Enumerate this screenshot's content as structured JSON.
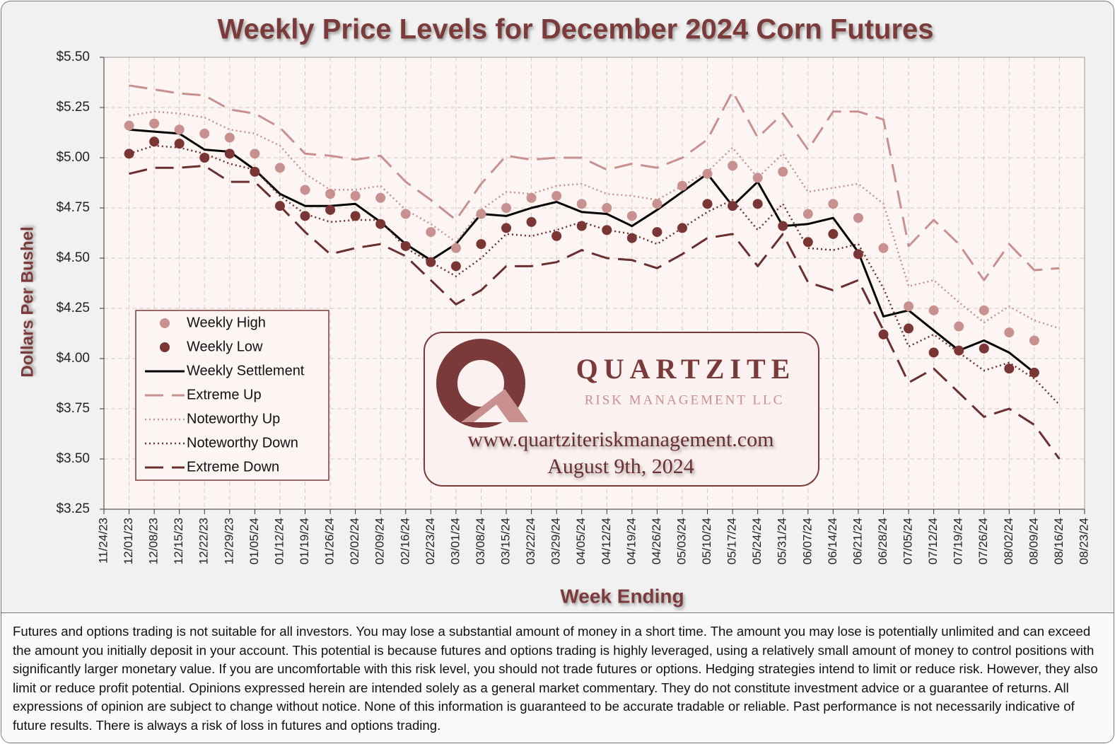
{
  "chart_data": {
    "type": "line",
    "title": "Weekly Price Levels for December 2024 Corn Futures",
    "y_label": "Dollars Per Bushel",
    "x_label": "Week Ending",
    "categories": [
      "11/24/23",
      "12/01/23",
      "12/08/23",
      "12/15/23",
      "12/22/23",
      "12/29/23",
      "01/05/24",
      "01/12/24",
      "01/19/24",
      "01/26/24",
      "02/02/24",
      "02/09/24",
      "02/16/24",
      "02/23/24",
      "03/01/24",
      "03/08/24",
      "03/15/24",
      "03/22/24",
      "03/29/24",
      "04/05/24",
      "04/12/24",
      "04/19/24",
      "04/26/24",
      "05/03/24",
      "05/10/24",
      "05/17/24",
      "05/24/24",
      "05/31/24",
      "06/07/24",
      "06/14/24",
      "06/21/24",
      "06/28/24",
      "07/05/24",
      "07/12/24",
      "07/19/24",
      "07/26/24",
      "08/02/24",
      "08/09/24",
      "08/16/24",
      "08/23/24"
    ],
    "ylim": [
      3.25,
      5.5
    ],
    "yticks": [
      {
        "value": 3.25,
        "label": "$3.25"
      },
      {
        "value": 3.5,
        "label": "$3.50"
      },
      {
        "value": 3.75,
        "label": "$3.75"
      },
      {
        "value": 4,
        "label": "$4.00"
      },
      {
        "value": 4.25,
        "label": "$4.25"
      },
      {
        "value": 4.5,
        "label": "$4.50"
      },
      {
        "value": 4.75,
        "label": "$4.75"
      },
      {
        "value": 5,
        "label": "$5.00"
      },
      {
        "value": 5.25,
        "label": "$5.25"
      },
      {
        "value": 5.5,
        "label": "$5.50"
      }
    ],
    "grid": true,
    "series": [
      {
        "name": "Weekly High",
        "color": "#c99090",
        "style": "marker",
        "values": [
          null,
          5.16,
          5.17,
          5.14,
          5.12,
          5.1,
          5.02,
          4.95,
          4.84,
          4.82,
          4.81,
          4.8,
          4.72,
          4.63,
          4.55,
          4.72,
          4.75,
          4.8,
          4.81,
          4.77,
          4.75,
          4.71,
          4.77,
          4.86,
          4.92,
          4.96,
          4.9,
          4.93,
          4.72,
          4.77,
          4.7,
          4.55,
          4.26,
          4.24,
          4.16,
          4.24,
          4.13,
          4.09,
          null,
          null
        ]
      },
      {
        "name": "Weekly Low",
        "color": "#7a3535",
        "style": "marker",
        "values": [
          null,
          5.02,
          5.08,
          5.07,
          5.0,
          5.02,
          4.93,
          4.76,
          4.71,
          4.74,
          4.71,
          4.67,
          4.56,
          4.48,
          4.46,
          4.57,
          4.65,
          4.68,
          4.61,
          4.66,
          4.64,
          4.6,
          4.63,
          4.65,
          4.77,
          4.76,
          4.77,
          4.66,
          4.58,
          4.62,
          4.52,
          4.12,
          4.15,
          4.03,
          4.04,
          4.05,
          3.95,
          3.93,
          null,
          null
        ]
      },
      {
        "name": "Weekly Settlement",
        "color": "#000000",
        "style": "solid",
        "values": [
          null,
          5.14,
          5.13,
          5.12,
          5.04,
          5.03,
          4.94,
          4.82,
          4.76,
          4.76,
          4.77,
          4.68,
          4.57,
          4.49,
          4.57,
          4.72,
          4.71,
          4.75,
          4.78,
          4.73,
          4.72,
          4.66,
          4.74,
          4.83,
          4.92,
          4.76,
          4.88,
          4.66,
          4.67,
          4.7,
          4.53,
          4.21,
          4.24,
          4.14,
          4.04,
          4.09,
          4.03,
          3.93,
          null,
          null
        ]
      },
      {
        "name": "Extreme Up",
        "color": "#c99090",
        "style": "dashed",
        "values": [
          null,
          5.36,
          5.34,
          5.32,
          5.31,
          5.24,
          5.22,
          5.15,
          5.02,
          5.01,
          4.99,
          5.01,
          4.88,
          4.79,
          4.69,
          4.87,
          5.01,
          4.99,
          5.0,
          5.0,
          4.94,
          4.97,
          4.95,
          5.0,
          5.09,
          5.33,
          5.1,
          5.22,
          5.04,
          5.23,
          5.23,
          5.19,
          4.56,
          4.69,
          4.57,
          4.39,
          4.57,
          4.44,
          4.45,
          null
        ]
      },
      {
        "name": "Noteworthy Up",
        "color": "#c99090",
        "style": "dotted",
        "values": [
          null,
          5.21,
          5.23,
          5.22,
          5.2,
          5.14,
          5.12,
          5.06,
          4.92,
          4.84,
          4.84,
          4.86,
          4.74,
          4.67,
          4.58,
          4.74,
          4.83,
          4.82,
          4.86,
          4.87,
          4.82,
          4.81,
          4.79,
          4.86,
          4.93,
          5.05,
          4.9,
          5.02,
          4.83,
          4.85,
          4.87,
          4.77,
          4.36,
          4.39,
          4.28,
          4.18,
          4.26,
          4.19,
          4.15,
          null
        ]
      },
      {
        "name": "Noteworthy Down",
        "color": "#6b2e2e",
        "style": "dotted",
        "values": [
          null,
          5.02,
          5.06,
          5.05,
          5.02,
          4.97,
          4.94,
          4.81,
          4.72,
          4.68,
          4.69,
          4.69,
          4.55,
          4.48,
          4.41,
          4.5,
          4.62,
          4.61,
          4.64,
          4.68,
          4.64,
          4.62,
          4.57,
          4.65,
          4.73,
          4.79,
          4.64,
          4.77,
          4.55,
          4.54,
          4.57,
          4.35,
          4.06,
          4.12,
          4.03,
          3.94,
          3.98,
          3.9,
          3.77,
          null
        ]
      },
      {
        "name": "Extreme Down",
        "color": "#6b2e2e",
        "style": "dashed",
        "values": [
          null,
          4.92,
          4.95,
          4.95,
          4.96,
          4.88,
          4.88,
          4.76,
          4.63,
          4.52,
          4.55,
          4.57,
          4.51,
          4.39,
          4.27,
          4.34,
          4.46,
          4.46,
          4.48,
          4.54,
          4.5,
          4.49,
          4.45,
          4.52,
          4.6,
          4.62,
          4.46,
          4.62,
          4.38,
          4.34,
          4.39,
          4.14,
          3.88,
          3.95,
          3.83,
          3.71,
          3.75,
          3.67,
          3.5,
          null
        ]
      }
    ]
  },
  "logo": {
    "name": "QUARTZITE",
    "subtitle": "RISK MANAGEMENT LLC",
    "url": "www.quartziteriskmanagement.com",
    "date": "August 9th, 2024"
  },
  "disclaimer": "Futures and options trading is not suitable for all investors. You may lose a substantial amount of money in a short time. The amount you may lose is potentially unlimited and can exceed the amount you initially deposit in your account. This potential is because futures and options trading is highly leveraged, using a relatively small amount of money to control positions with significantly larger monetary value. If you are uncomfortable with this risk level, you should not trade futures or options. Hedging strategies intend to limit or reduce risk. However, they also limit or reduce profit potential. Opinions expressed herein are intended solely as a general market commentary. They do not constitute investment advice or a guarantee of returns. All expressions of opinion are subject to change without notice. None of this information is guaranteed to be accurate tradable or reliable. Past performance is not necessarily indicative of future results. There is always a risk of loss in futures and options trading."
}
